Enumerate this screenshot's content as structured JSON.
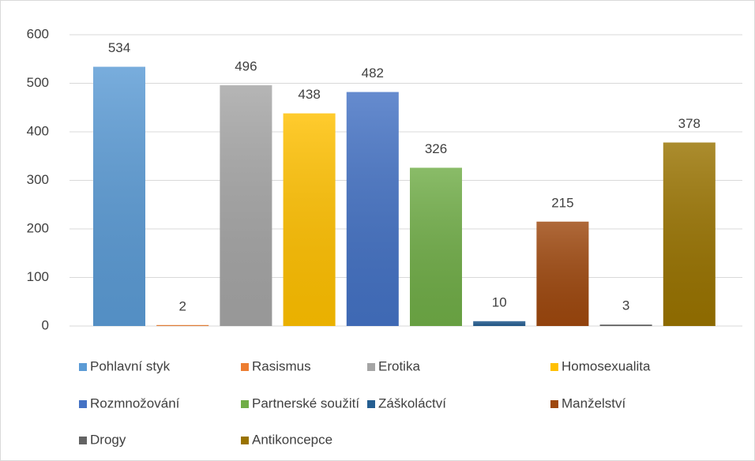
{
  "chart_data": {
    "type": "bar",
    "series": [
      {
        "name": "Pohlavní styk",
        "color": "#5b9bd5",
        "values": [
          534
        ]
      },
      {
        "name": "Rasismus",
        "color": "#ed7d31",
        "values": [
          2
        ]
      },
      {
        "name": "Erotika",
        "color": "#a5a5a5",
        "values": [
          496
        ]
      },
      {
        "name": "Homosexualita",
        "color": "#ffc000",
        "values": [
          438
        ]
      },
      {
        "name": "Rozmnožování",
        "color": "#4472c4",
        "values": [
          482
        ]
      },
      {
        "name": "Partnerské soužití",
        "color": "#70ad47",
        "values": [
          326
        ]
      },
      {
        "name": "Záškoláctví",
        "color": "#255e91",
        "values": [
          10
        ]
      },
      {
        "name": "Manželství",
        "color": "#9e480e",
        "values": [
          215
        ]
      },
      {
        "name": "Drogy",
        "color": "#636363",
        "values": [
          3
        ]
      },
      {
        "name": "Antikoncepce",
        "color": "#997300",
        "values": [
          378
        ]
      }
    ],
    "ylim": [
      0,
      600
    ],
    "yticks": [
      0,
      100,
      200,
      300,
      400,
      500,
      600
    ],
    "grid": true,
    "legend": "bottom"
  }
}
